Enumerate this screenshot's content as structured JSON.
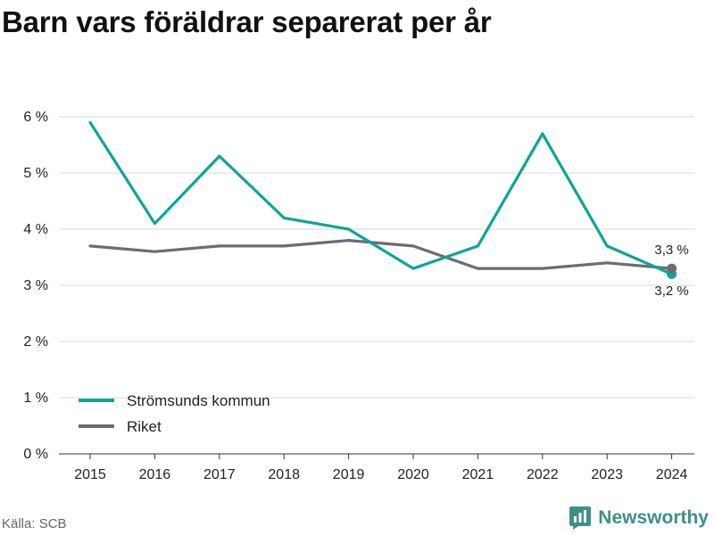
{
  "title": "Barn vars föräldrar separerat per år",
  "source": "Källa: SCB",
  "brand": "Newsworthy",
  "chart_data": {
    "type": "line",
    "x": [
      2015,
      2016,
      2017,
      2018,
      2019,
      2020,
      2021,
      2022,
      2023,
      2024
    ],
    "ylim": [
      0,
      6
    ],
    "yticks": [
      "0 %",
      "1 %",
      "2 %",
      "3 %",
      "4 %",
      "5 %",
      "6 %"
    ],
    "ytick_values": [
      0,
      1,
      2,
      3,
      4,
      5,
      6
    ],
    "grid": true,
    "legend_position": "bottom-left",
    "series": [
      {
        "name": "Strömsunds kommun",
        "color": "#0da599",
        "values": [
          5.9,
          4.1,
          5.3,
          4.2,
          4.0,
          3.3,
          3.7,
          5.7,
          3.7,
          3.2
        ],
        "end_label": "3,2 %"
      },
      {
        "name": "Riket",
        "color": "#6d6b73",
        "values": [
          3.7,
          3.6,
          3.7,
          3.7,
          3.8,
          3.7,
          3.3,
          3.3,
          3.4,
          3.3
        ],
        "end_label": "3,3 %"
      }
    ]
  }
}
